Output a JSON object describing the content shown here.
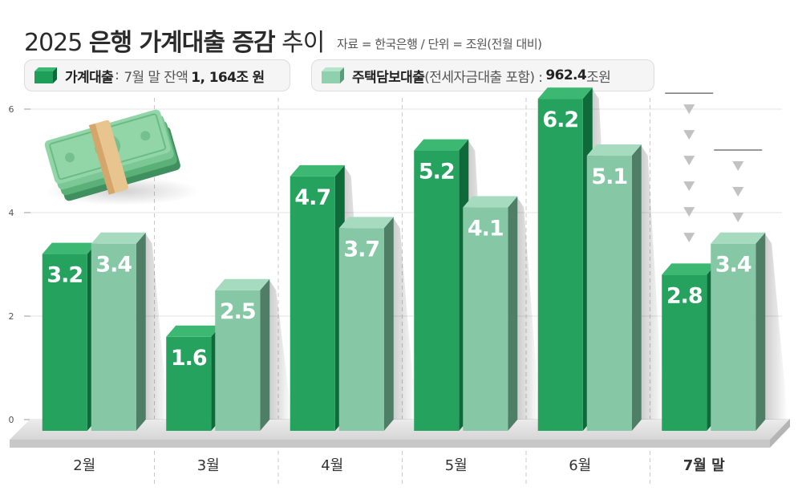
{
  "header": {
    "year": "2025",
    "title_bold": "은행 가계대출 증감",
    "title_light": "추이",
    "source": "자료 = 한국은행 / 단위 = 조원(전월 대비)"
  },
  "legend": [
    {
      "label": "가계대출",
      "colon": ":",
      "caption": "7월 말 잔액",
      "value": "1, 164조",
      "unit": "원",
      "color": "#1f9e5a"
    },
    {
      "label": "주택담보대출",
      "caption": "(전세자금대출 포함) :",
      "value": "962.4",
      "unit": "조원",
      "color": "#8fd1ae"
    }
  ],
  "colors": {
    "series1": "#25a25d",
    "series1_top": "#3cb873",
    "series1_side": "#0f6a39",
    "series2": "#86c8a6",
    "series2_top": "#a6dbbf",
    "series2_side": "#4e7f66"
  },
  "chart_data": {
    "type": "bar",
    "categories": [
      "2월",
      "3월",
      "4월",
      "5월",
      "6월",
      "7월 말"
    ],
    "series": [
      {
        "name": "가계대출",
        "values": [
          3.2,
          1.6,
          4.7,
          5.2,
          6.2,
          2.8
        ]
      },
      {
        "name": "주택담보대출",
        "values": [
          3.4,
          2.5,
          3.7,
          4.1,
          5.1,
          3.4
        ]
      }
    ],
    "value_labels": [
      [
        "3.2",
        "1.6",
        "4.7",
        "5.2",
        "6.2",
        "2.8"
      ],
      [
        "3.4",
        "2.5",
        "3.7",
        "4.1",
        "5.1",
        "3.4"
      ]
    ],
    "y_ticks": [
      "0",
      "2",
      "4",
      "6"
    ],
    "ylim": [
      0,
      6
    ],
    "grid": true,
    "highlight_category": "7월 말"
  }
}
